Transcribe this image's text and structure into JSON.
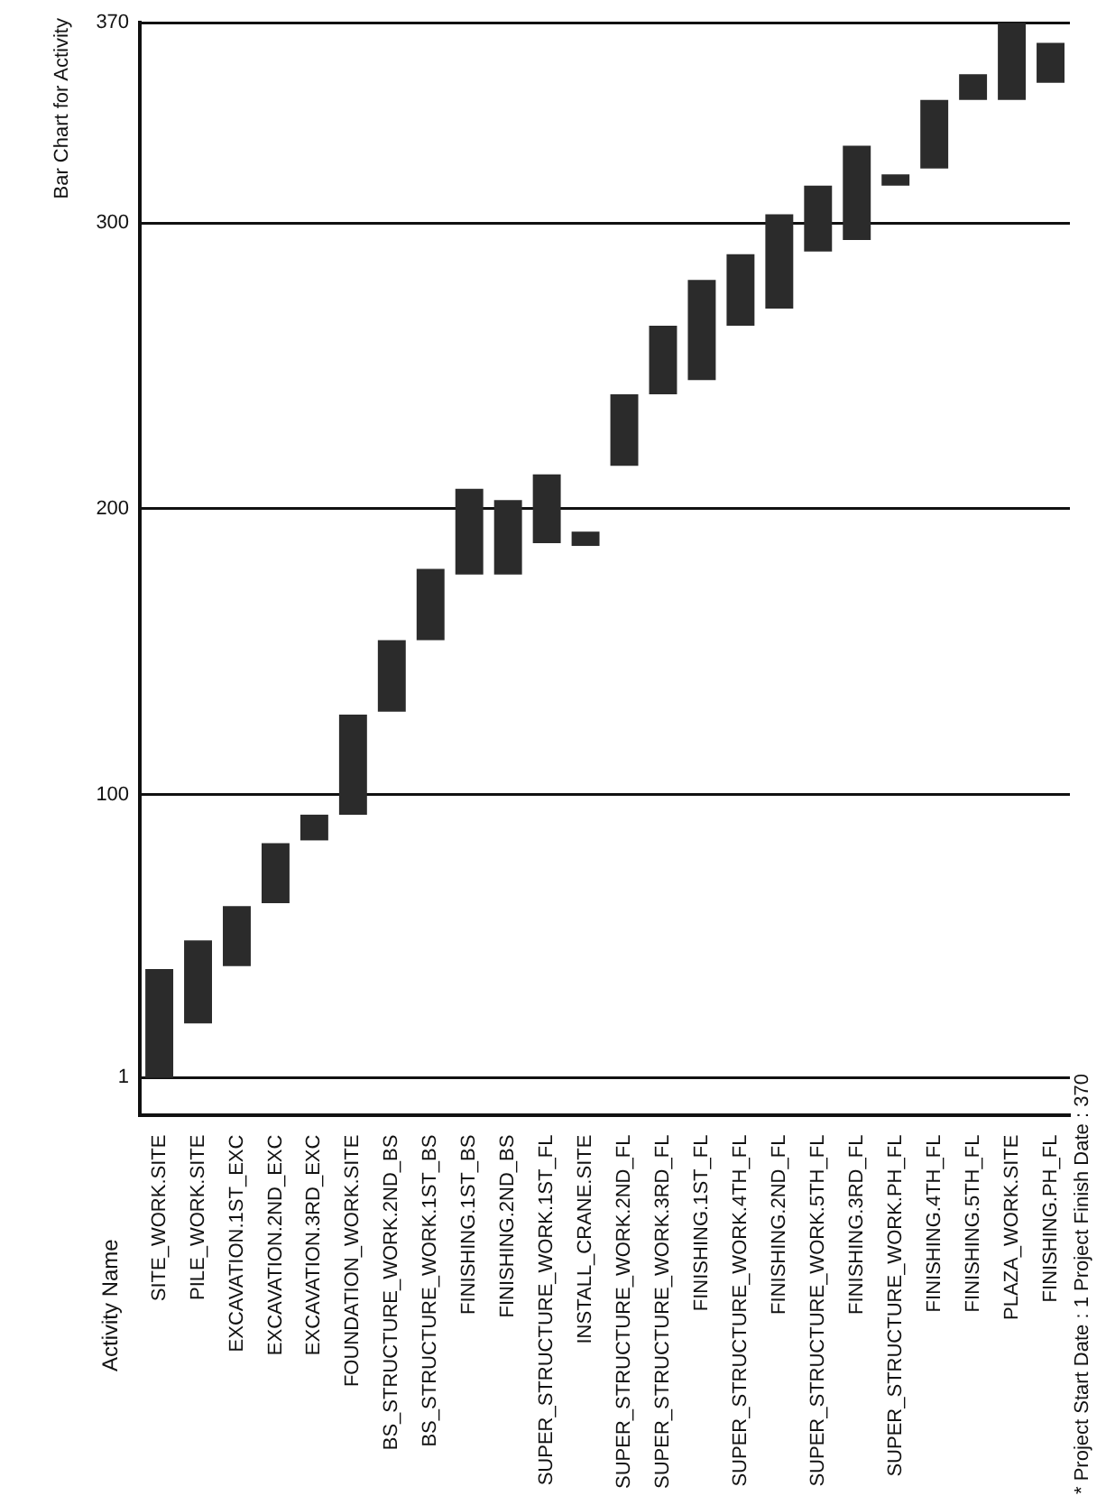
{
  "chart_data": {
    "type": "bar",
    "title": "Bar Chart for Activity",
    "categories": [
      "SITE_WORK.SITE",
      "PILE_WORK.SITE",
      "EXCAVATION.1ST_EXC",
      "EXCAVATION.2ND_EXC",
      "EXCAVATION.3RD_EXC",
      "FOUNDATION_WORK.SITE",
      "BS_STRUCTURE_WORK.2ND_BS",
      "BS_STRUCTURE_WORK.1ST_BS",
      "FINISHING.1ST_BS",
      "FINISHING.2ND_BS",
      "SUPER_STRUCTURE_WORK.1ST_FL",
      "INSTALL_CRANE.SITE",
      "SUPER_STRUCTURE_WORK.2ND_FL",
      "SUPER_STRUCTURE_WORK.3RD_FL",
      "FINISHING.1ST_FL",
      "SUPER_STRUCTURE_WORK.4TH_FL",
      "FINISHING.2ND_FL",
      "SUPER_STRUCTURE_WORK.5TH_FL",
      "FINISHING.3RD_FL",
      "SUPER_STRUCTURE_WORK.PH_FL",
      "FINISHING.4TH_FL",
      "FINISHING.5TH_FL",
      "PLAZA_WORK.SITE",
      "FINISHING.PH_FL"
    ],
    "base": [
      1,
      20,
      40,
      62,
      84,
      93,
      129,
      154,
      177,
      177,
      188,
      187,
      215,
      240,
      245,
      264,
      270,
      290,
      294,
      313,
      319,
      343,
      343,
      349
    ],
    "values": [
      38,
      29,
      21,
      21,
      9,
      35,
      25,
      25,
      30,
      26,
      24,
      5,
      25,
      24,
      35,
      25,
      33,
      23,
      33,
      4,
      24,
      9,
      27,
      14
    ],
    "color": "#2b2b2b",
    "ylim": [
      -12,
      370
    ],
    "yticks": [
      1,
      100,
      200,
      300,
      370
    ],
    "grid": "y",
    "annotations": [
      "Activity Name",
      "* Project Start Date : 1 Project Finish Date : 370"
    ]
  }
}
